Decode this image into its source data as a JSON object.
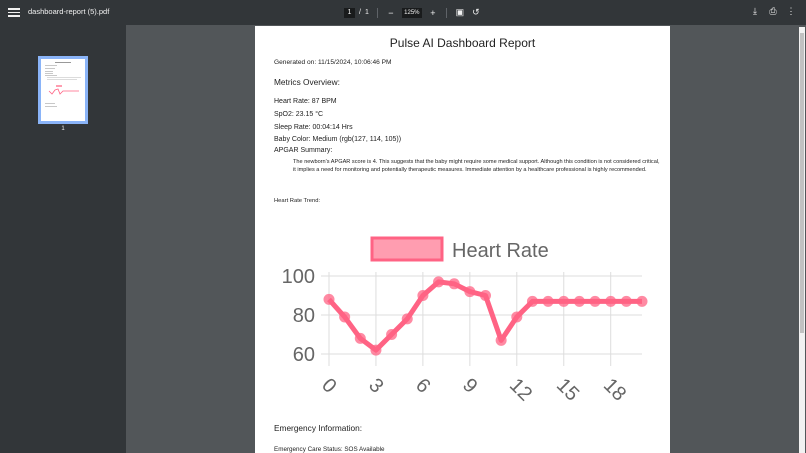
{
  "toolbar": {
    "file_name": "dashboard-report (5).pdf",
    "current_page": "1",
    "page_separator": "/",
    "total_pages": "1",
    "zoom_out": "−",
    "zoom_level": "125%",
    "zoom_in": "+",
    "fit_icon": "▣",
    "rotate_icon": "↺",
    "download_icon": "⤓",
    "print_icon": "⎙",
    "more_icon": "⋮"
  },
  "sidebar": {
    "thumbnails": [
      {
        "page_number": "1"
      }
    ]
  },
  "report": {
    "title": "Pulse AI Dashboard Report",
    "generated_on": "Generated on: 11/15/2024, 10:06:46 PM",
    "metrics_heading": "Metrics Overview:",
    "metrics": [
      "Heart Rate: 87 BPM",
      "SpO2: 23.15 °C",
      "Sleep Rate: 00:04:14 Hrs",
      "Baby Color: Medium (rgb(127, 114, 105))",
      "APGAR Summary:"
    ],
    "apgar_summary": "The newborn's APGAR score is 4. This suggests that the baby might require some medical support. Although this condition is not considered critical, it implies a need for monitoring and potentially therapeutic measures. Immediate attention by a healthcare professional is highly recommended.",
    "trend_label": "Heart Rate Trend:",
    "emergency_heading": "Emergency Information:",
    "emergency_status": "Emergency Care Status: SOS Available"
  },
  "chart_data": {
    "type": "line",
    "title": "",
    "legend": [
      "Heart Rate"
    ],
    "legend_position": "top",
    "x": [
      0,
      1,
      2,
      3,
      4,
      5,
      6,
      7,
      8,
      9,
      10,
      11,
      12,
      13,
      14,
      15,
      16,
      17,
      18,
      19,
      20
    ],
    "x_tick_labels": [
      "0",
      "3",
      "6",
      "9",
      "12",
      "15",
      "18"
    ],
    "series": [
      {
        "name": "Heart Rate",
        "color": "#ff6384",
        "values": [
          88,
          79,
          68,
          62,
          70,
          78,
          90,
          97,
          96,
          92,
          90,
          67,
          79,
          87,
          87,
          87,
          87,
          87,
          87,
          87,
          87
        ]
      }
    ],
    "y_tick_labels": [
      "100",
      "80",
      "60"
    ],
    "ylim": [
      55,
      100
    ],
    "xlabel": "",
    "ylabel": "",
    "grid": true
  },
  "colors": {
    "toolbar_bg": "#323639",
    "viewer_bg": "#525659",
    "line": "#ff6384",
    "thumb_border": "#8ab4f8"
  }
}
